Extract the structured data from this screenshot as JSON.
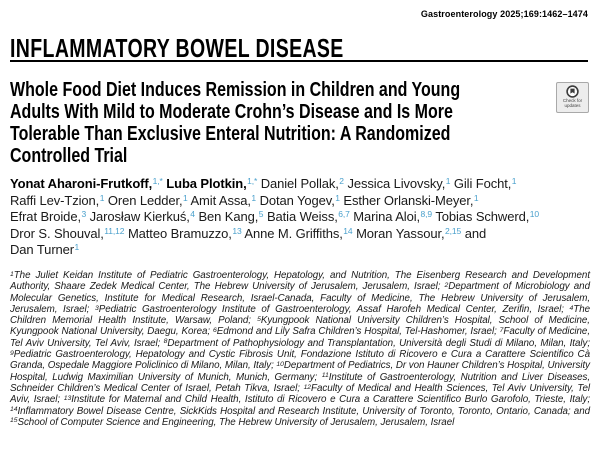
{
  "journal_ref": "Gastroenterology 2025;169:1462–1474",
  "section_header": "INFLAMMATORY BOWEL DISEASE",
  "badge": {
    "label": "Check for updates"
  },
  "colors": {
    "superscript": "#4aa0cc"
  },
  "title_lines": [
    "Whole Food Diet Induces Remission in Children and Young",
    "Adults With Mild to Moderate Crohn’s Disease and Is More",
    "Tolerable Than Exclusive Enteral Nutrition: A Randomized",
    "Controlled Trial"
  ],
  "authors": {
    "lines": [
      [
        {
          "name": "Yonat Aharoni-Frutkoff,",
          "sup": "1,*",
          "bold": true
        },
        {
          "name": "Luba Plotkin,",
          "sup": "1,*",
          "bold": true
        },
        {
          "name": "Daniel Pollak,",
          "sup": "2",
          "bold": false
        },
        {
          "name": "Jessica Livovsky,",
          "sup": "1",
          "bold": false
        },
        {
          "name": "Gili Focht,",
          "sup": "1",
          "bold": false
        }
      ],
      [
        {
          "name": "Raffi Lev-Tzion,",
          "sup": "1",
          "bold": false
        },
        {
          "name": "Oren Ledder,",
          "sup": "1",
          "bold": false
        },
        {
          "name": "Amit Assa,",
          "sup": "1",
          "bold": false
        },
        {
          "name": "Dotan Yogev,",
          "sup": "1",
          "bold": false
        },
        {
          "name": "Esther Orlanski-Meyer,",
          "sup": "1",
          "bold": false
        }
      ],
      [
        {
          "name": "Efrat Broide,",
          "sup": "3",
          "bold": false
        },
        {
          "name": "Jarosław Kierkuś,",
          "sup": "4",
          "bold": false
        },
        {
          "name": "Ben Kang,",
          "sup": "5",
          "bold": false
        },
        {
          "name": "Batia Weiss,",
          "sup": "6,7",
          "bold": false
        },
        {
          "name": "Marina Aloi,",
          "sup": "8,9",
          "bold": false
        },
        {
          "name": "Tobias Schwerd,",
          "sup": "10",
          "bold": false
        }
      ],
      [
        {
          "name": "Dror S. Shouval,",
          "sup": "11,12",
          "bold": false
        },
        {
          "name": "Matteo Bramuzzo,",
          "sup": "13",
          "bold": false
        },
        {
          "name": "Anne M. Griffiths,",
          "sup": "14",
          "bold": false
        },
        {
          "name": "Moran Yassour,",
          "sup": "2,15",
          "bold": false
        },
        {
          "name": "and",
          "sup": "",
          "bold": false
        }
      ],
      [
        {
          "name": "Dan Turner",
          "sup": "1",
          "bold": false
        }
      ]
    ]
  },
  "affiliations": [
    {
      "sup": "1",
      "text": "The Juliet Keidan Institute of Pediatric Gastroenterology, Hepatology, and Nutrition, The Eisenberg Research and Development Authority, Shaare Zedek Medical Center, The Hebrew University of Jerusalem, Jerusalem, Israel; "
    },
    {
      "sup": "2",
      "text": "Department of Microbiology and Molecular Genetics, Institute for Medical Research, Israel-Canada, Faculty of Medicine, The Hebrew University of Jerusalem, Jerusalem, Israel; "
    },
    {
      "sup": "3",
      "text": "Pediatric Gastroenterology Institute of Gastroenterology, Assaf Harofeh Medical Center, Zerifin, Israel; "
    },
    {
      "sup": "4",
      "text": "The Children Memorial Health Institute, Warsaw, Poland; "
    },
    {
      "sup": "5",
      "text": "Kyungpook National University Children’s Hospital, School of Medicine, Kyungpook National University, Daegu, Korea; "
    },
    {
      "sup": "6",
      "text": "Edmond and Lily Safra Children’s Hospital, Tel-Hashomer, Israel; "
    },
    {
      "sup": "7",
      "text": "Faculty of Medicine, Tel Aviv University, Tel Aviv, Israel; "
    },
    {
      "sup": "8",
      "text": "Department of Pathophysiology and Transplantation, Università degli Studi di Milano, Milan, Italy; "
    },
    {
      "sup": "9",
      "text": "Pediatric Gastroenterology, Hepatology and Cystic Fibrosis Unit, Fondazione Istituto di Ricovero e Cura a Carattere Scientifico Cà Granda, Ospedale Maggiore Policlinico di Milano, Milan, Italy; "
    },
    {
      "sup": "10",
      "text": "Department of Pediatrics, Dr von Hauner Children’s Hospital, University Hospital, Ludwig Maximilian University of Munich, Munich, Germany; "
    },
    {
      "sup": "11",
      "text": "Institute of Gastroenterology, Nutrition and Liver Diseases, Schneider Children’s Medical Center of Israel, Petah Tikva, Israel; "
    },
    {
      "sup": "12",
      "text": "Faculty of Medical and Health Sciences, Tel Aviv University, Tel Aviv, Israel; "
    },
    {
      "sup": "13",
      "text": "Institute for Maternal and Child Health, Istituto di Ricovero e Cura a Carattere Scientifico Burlo Garofolo, Trieste, Italy; "
    },
    {
      "sup": "14",
      "text": "Inflammatory Bowel Disease Centre, SickKids Hospital and Research Institute, University of Toronto, Toronto, Ontario, Canada; and "
    },
    {
      "sup": "15",
      "text": "School of Computer Science and Engineering, The Hebrew University of Jerusalem, Jerusalem, Israel"
    }
  ]
}
